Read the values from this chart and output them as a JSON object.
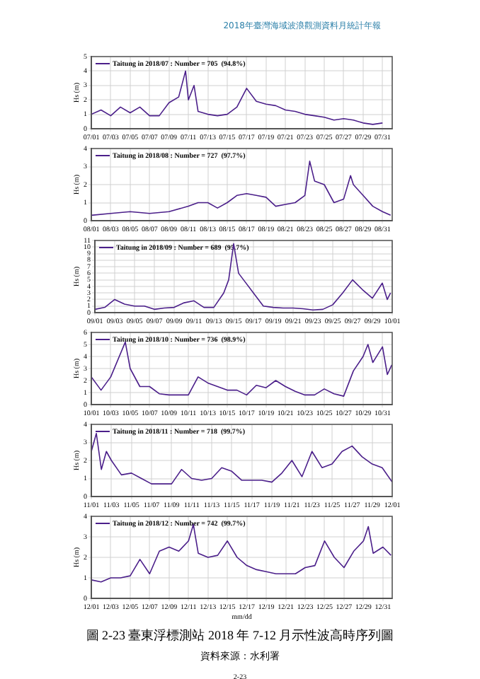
{
  "chart_data": [
    {
      "type": "line",
      "ylabel": "Hs (m)",
      "annotations": [
        "2018年臺灣海域波浪觀測資料月統計年報"
      ],
      "legend": "top left",
      "grid": true,
      "marker": "none",
      "line_style": "solid",
      "series": [
        {
          "name": "Taitung in 2018/07 : Number = 705  (94.8%)",
          "color": "#4b1f8a",
          "x": [
            "--07-01",
            "--07-02",
            "--07-03",
            "--07-04",
            "--07-05",
            "--07-06",
            "--07-07",
            "--07-08",
            "--07-09",
            "--07-10",
            "--07-10T17:00",
            "--07-11",
            "--07-11T14:00",
            "--07-12",
            "--07-13",
            "--07-14",
            "--07-15",
            "--07-16",
            "--07-17",
            "--07-18",
            "--07-19",
            "--07-20",
            "--07-21",
            "--07-22",
            "--07-23",
            "--07-24",
            "--07-25",
            "--07-26",
            "--07-27",
            "--07-28",
            "--07-29",
            "--07-30",
            "--07-31"
          ],
          "values": [
            1.0,
            1.3,
            0.9,
            1.5,
            1.1,
            1.5,
            0.9,
            0.9,
            1.8,
            2.2,
            4.0,
            2.0,
            3.0,
            1.2,
            1.0,
            0.9,
            1.0,
            1.5,
            2.8,
            1.9,
            1.7,
            1.6,
            1.3,
            1.2,
            1.0,
            0.9,
            0.8,
            0.6,
            0.7,
            0.6,
            0.4,
            0.3,
            0.4
          ]
        }
      ],
      "xlim": [
        "--07-01",
        "--08-01"
      ],
      "ylim": [
        0,
        5
      ],
      "yticks": [
        0,
        1,
        2,
        3,
        4,
        5
      ],
      "xticks": [
        {
          "value": "--07-01",
          "label": "07/01"
        },
        {
          "value": "--07-03",
          "label": "07/03"
        },
        {
          "value": "--07-05",
          "label": "07/05"
        },
        {
          "value": "--07-07",
          "label": "07/07"
        },
        {
          "value": "--07-09",
          "label": "07/09"
        },
        {
          "value": "--07-11",
          "label": "07/11"
        },
        {
          "value": "--07-13",
          "label": "07/13"
        },
        {
          "value": "--07-15",
          "label": "07/15"
        },
        {
          "value": "--07-17",
          "label": "07/17"
        },
        {
          "value": "--07-19",
          "label": "07/19"
        },
        {
          "value": "--07-21",
          "label": "07/21"
        },
        {
          "value": "--07-23",
          "label": "07/23"
        },
        {
          "value": "--07-25",
          "label": "07/25"
        },
        {
          "value": "--07-27",
          "label": "07/27"
        },
        {
          "value": "--07-29",
          "label": "07/29"
        },
        {
          "value": "--07-31",
          "label": "07/31"
        }
      ]
    },
    {
      "type": "line",
      "ylabel": "Hs (m)",
      "legend": "top left",
      "grid": true,
      "marker": "none",
      "line_style": "solid",
      "series": [
        {
          "name": "Taitung in 2018/08 : Number = 727  (97.7%)",
          "color": "#4b1f8a",
          "x": [
            "--08-01",
            "--08-03",
            "--08-05",
            "--08-07",
            "--08-09",
            "--08-11",
            "--08-12",
            "--08-13",
            "--08-14",
            "--08-15",
            "--08-16",
            "--08-17",
            "--08-18",
            "--08-19",
            "--08-20",
            "--08-21",
            "--08-22",
            "--08-23",
            "--08-23T12:00",
            "--08-24",
            "--08-25",
            "--08-26",
            "--08-27",
            "--08-27T17:00",
            "--08-28",
            "--08-29",
            "--08-30",
            "--08-31",
            "--08-31T20:00"
          ],
          "values": [
            0.3,
            0.4,
            0.5,
            0.4,
            0.5,
            0.8,
            1.0,
            1.0,
            0.7,
            1.0,
            1.4,
            1.5,
            1.4,
            1.3,
            0.8,
            0.9,
            1.0,
            1.4,
            3.3,
            2.2,
            2.0,
            1.0,
            1.2,
            2.5,
            2.0,
            1.4,
            0.8,
            0.5,
            0.3
          ]
        }
      ],
      "xlim": [
        "--08-01",
        "--09-01"
      ],
      "ylim": [
        0,
        4
      ],
      "yticks": [
        0,
        1,
        2,
        3,
        4
      ],
      "xticks": [
        {
          "value": "--08-01",
          "label": "08/01"
        },
        {
          "value": "--08-03",
          "label": "08/03"
        },
        {
          "value": "--08-05",
          "label": "08/05"
        },
        {
          "value": "--08-07",
          "label": "08/07"
        },
        {
          "value": "--08-09",
          "label": "08/09"
        },
        {
          "value": "--08-11",
          "label": "08/11"
        },
        {
          "value": "--08-13",
          "label": "08/13"
        },
        {
          "value": "--08-15",
          "label": "08/15"
        },
        {
          "value": "--08-17",
          "label": "08/17"
        },
        {
          "value": "--08-19",
          "label": "08/19"
        },
        {
          "value": "--08-21",
          "label": "08/21"
        },
        {
          "value": "--08-23",
          "label": "08/23"
        },
        {
          "value": "--08-25",
          "label": "08/25"
        },
        {
          "value": "--08-27",
          "label": "08/27"
        },
        {
          "value": "--08-29",
          "label": "08/29"
        },
        {
          "value": "--08-31",
          "label": "08/31"
        }
      ]
    },
    {
      "type": "line",
      "ylabel": "Hs (m)",
      "legend": "top left",
      "grid": true,
      "marker": "none",
      "line_style": "solid",
      "series": [
        {
          "name": "Taitung in 2018/09 : Number = 689  (95.7%)",
          "color": "#4b1f8a",
          "x": [
            "--09-01",
            "--09-02",
            "--09-03",
            "--09-04",
            "--09-05",
            "--09-06",
            "--09-07",
            "--09-08",
            "--09-09",
            "--09-10",
            "--09-11",
            "--09-12",
            "--09-13",
            "--09-14",
            "--09-14T12:00",
            "--09-15",
            "--09-15T12:00",
            "--09-16",
            "--09-17",
            "--09-18",
            "--09-19",
            "--09-20",
            "--09-21",
            "--09-22",
            "--09-23",
            "--09-24",
            "--09-25",
            "--09-26",
            "--09-27",
            "--09-28",
            "--09-29",
            "--09-30",
            "--09-30T12:00",
            "--09-30T20:00"
          ],
          "values": [
            0.5,
            0.8,
            2.0,
            1.3,
            1.0,
            1.0,
            0.5,
            0.7,
            0.8,
            1.5,
            1.8,
            0.8,
            0.8,
            3.0,
            5.0,
            10.5,
            6.0,
            5.0,
            3.0,
            1.0,
            0.8,
            0.7,
            0.7,
            0.6,
            0.4,
            0.5,
            1.2,
            3.0,
            5.0,
            3.5,
            2.2,
            4.5,
            2.0,
            3.0
          ]
        }
      ],
      "xlim": [
        "--09-01",
        "--10-01"
      ],
      "ylim": [
        0,
        11
      ],
      "yticks": [
        0,
        1,
        2,
        3,
        4,
        5,
        6,
        7,
        8,
        9,
        10,
        11
      ],
      "xticks": [
        {
          "value": "--09-01",
          "label": "09/01"
        },
        {
          "value": "--09-03",
          "label": "09/03"
        },
        {
          "value": "--09-05",
          "label": "09/05"
        },
        {
          "value": "--09-07",
          "label": "09/07"
        },
        {
          "value": "--09-09",
          "label": "09/09"
        },
        {
          "value": "--09-11",
          "label": "09/11"
        },
        {
          "value": "--09-13",
          "label": "09/13"
        },
        {
          "value": "--09-15",
          "label": "09/15"
        },
        {
          "value": "--09-17",
          "label": "09/17"
        },
        {
          "value": "--09-19",
          "label": "09/19"
        },
        {
          "value": "--09-21",
          "label": "09/21"
        },
        {
          "value": "--09-23",
          "label": "09/23"
        },
        {
          "value": "--09-25",
          "label": "09/25"
        },
        {
          "value": "--09-27",
          "label": "09/27"
        },
        {
          "value": "--09-29",
          "label": "09/29"
        },
        {
          "value": "--10-01",
          "label": "10/01"
        }
      ]
    },
    {
      "type": "line",
      "ylabel": "Hs (m)",
      "legend": "top left",
      "grid": true,
      "marker": "none",
      "line_style": "solid",
      "series": [
        {
          "name": "Taitung in 2018/10 : Number = 736  (98.9%)",
          "color": "#4b1f8a",
          "x": [
            "--10-01",
            "--10-02",
            "--10-03",
            "--10-04T12:00",
            "--10-05",
            "--10-06",
            "--10-07",
            "--10-08",
            "--10-09",
            "--10-10",
            "--10-11",
            "--10-12",
            "--10-13",
            "--10-14",
            "--10-15",
            "--10-16",
            "--10-17",
            "--10-18",
            "--10-19",
            "--10-20",
            "--10-21",
            "--10-22",
            "--10-23",
            "--10-24",
            "--10-25",
            "--10-26",
            "--10-27",
            "--10-28",
            "--10-29",
            "--10-29T12:00",
            "--10-30",
            "--10-31",
            "--10-31T12:00",
            "--10-31T23:00"
          ],
          "values": [
            2.3,
            1.2,
            2.3,
            5.2,
            3.0,
            1.5,
            1.5,
            0.9,
            0.8,
            0.8,
            0.8,
            2.3,
            1.8,
            1.5,
            1.2,
            1.2,
            0.8,
            1.6,
            1.4,
            2.0,
            1.5,
            1.1,
            0.8,
            0.8,
            1.3,
            0.9,
            0.7,
            2.8,
            4.0,
            5.0,
            3.5,
            4.8,
            2.5,
            3.3
          ]
        }
      ],
      "xlim": [
        "--10-01",
        "--11-01"
      ],
      "ylim": [
        0,
        6
      ],
      "yticks": [
        0,
        1,
        2,
        3,
        4,
        5,
        6
      ],
      "xticks": [
        {
          "value": "--10-01",
          "label": "10/01"
        },
        {
          "value": "--10-03",
          "label": "10/03"
        },
        {
          "value": "--10-05",
          "label": "10/05"
        },
        {
          "value": "--10-07",
          "label": "10/07"
        },
        {
          "value": "--10-09",
          "label": "10/09"
        },
        {
          "value": "--10-11",
          "label": "10/11"
        },
        {
          "value": "--10-13",
          "label": "10/13"
        },
        {
          "value": "--10-15",
          "label": "10/15"
        },
        {
          "value": "--10-17",
          "label": "10/17"
        },
        {
          "value": "--10-19",
          "label": "10/19"
        },
        {
          "value": "--10-21",
          "label": "10/21"
        },
        {
          "value": "--10-23",
          "label": "10/23"
        },
        {
          "value": "--10-25",
          "label": "10/25"
        },
        {
          "value": "--10-27",
          "label": "10/27"
        },
        {
          "value": "--10-29",
          "label": "10/29"
        },
        {
          "value": "--10-31",
          "label": "10/31"
        }
      ]
    },
    {
      "type": "line",
      "ylabel": "Hs (m)",
      "legend": "top left",
      "grid": true,
      "marker": "none",
      "line_style": "solid",
      "series": [
        {
          "name": "Taitung in 2018/11 : Number = 718  (99.7%)",
          "color": "#4b1f8a",
          "x": [
            "--11-01",
            "--11-01T12:00",
            "--11-02",
            "--11-02T12:00",
            "--11-03",
            "--11-04",
            "--11-05",
            "--11-06",
            "--11-07",
            "--11-08",
            "--11-09",
            "--11-10",
            "--11-11",
            "--11-12",
            "--11-13",
            "--11-14",
            "--11-15",
            "--11-16",
            "--11-17",
            "--11-18",
            "--11-19",
            "--11-20",
            "--11-21",
            "--11-22",
            "--11-23",
            "--11-24",
            "--11-25",
            "--11-26",
            "--11-27",
            "--11-28",
            "--11-29",
            "--11-30",
            "--12-01"
          ],
          "values": [
            2.5,
            3.5,
            1.5,
            2.5,
            2.0,
            1.2,
            1.3,
            1.0,
            0.7,
            0.7,
            0.7,
            1.5,
            1.0,
            0.9,
            1.0,
            1.6,
            1.4,
            0.9,
            0.9,
            0.9,
            0.8,
            1.3,
            2.0,
            1.1,
            2.5,
            1.6,
            1.8,
            2.5,
            2.8,
            2.2,
            1.8,
            1.6,
            0.8
          ]
        }
      ],
      "xlim": [
        "--11-01",
        "--12-01"
      ],
      "ylim": [
        0,
        4
      ],
      "yticks": [
        0,
        1,
        2,
        3,
        4
      ],
      "xticks": [
        {
          "value": "--11-01",
          "label": "11/01"
        },
        {
          "value": "--11-03",
          "label": "11/03"
        },
        {
          "value": "--11-05",
          "label": "11/05"
        },
        {
          "value": "--11-07",
          "label": "11/07"
        },
        {
          "value": "--11-09",
          "label": "11/09"
        },
        {
          "value": "--11-11",
          "label": "11/11"
        },
        {
          "value": "--11-13",
          "label": "11/13"
        },
        {
          "value": "--11-15",
          "label": "11/15"
        },
        {
          "value": "--11-17",
          "label": "11/17"
        },
        {
          "value": "--11-19",
          "label": "11/19"
        },
        {
          "value": "--11-21",
          "label": "11/21"
        },
        {
          "value": "--11-23",
          "label": "11/23"
        },
        {
          "value": "--11-25",
          "label": "11/25"
        },
        {
          "value": "--11-27",
          "label": "11/27"
        },
        {
          "value": "--11-29",
          "label": "11/29"
        },
        {
          "value": "--12-01",
          "label": "12/01"
        }
      ]
    },
    {
      "type": "line",
      "ylabel": "Hs (m)",
      "xlabel": "mm/dd",
      "annotations": [
        "圖 2-23 臺東浮標測站 2018 年 7-12 月示性波高時序列圖",
        "資料來源：水利署",
        "2-23"
      ],
      "legend": "top left",
      "grid": true,
      "marker": "none",
      "line_style": "solid",
      "series": [
        {
          "name": "Taitung in 2018/12 : Number = 742  (99.7%)",
          "color": "#4b1f8a",
          "x": [
            "--12-01",
            "--12-02",
            "--12-03",
            "--12-04",
            "--12-05",
            "--12-06",
            "--12-07",
            "--12-08",
            "--12-09",
            "--12-10",
            "--12-11",
            "--12-11T12:00",
            "--12-12",
            "--12-13",
            "--12-14",
            "--12-15",
            "--12-16",
            "--12-17",
            "--12-18",
            "--12-19",
            "--12-20",
            "--12-21",
            "--12-22",
            "--12-23",
            "--12-24",
            "--12-25",
            "--12-26",
            "--12-27",
            "--12-28",
            "--12-29",
            "--12-29T12:00",
            "--12-30",
            "--12-31",
            "--12-31T20:00"
          ],
          "values": [
            0.9,
            0.8,
            1.0,
            1.0,
            1.1,
            1.9,
            1.2,
            2.3,
            2.5,
            2.3,
            2.8,
            3.6,
            2.2,
            2.0,
            2.1,
            2.8,
            2.0,
            1.6,
            1.4,
            1.3,
            1.2,
            1.2,
            1.2,
            1.5,
            1.6,
            2.8,
            2.0,
            1.5,
            2.3,
            2.8,
            3.5,
            2.2,
            2.5,
            2.1
          ]
        }
      ],
      "xlim": [
        "--12-01",
        "--12-31T23:00"
      ],
      "ylim": [
        0,
        4
      ],
      "yticks": [
        0,
        1,
        2,
        3,
        4
      ],
      "xticks": [
        {
          "value": "--12-01",
          "label": "12/01"
        },
        {
          "value": "--12-03",
          "label": "12/03"
        },
        {
          "value": "--12-05",
          "label": "12/05"
        },
        {
          "value": "--12-07",
          "label": "12/07"
        },
        {
          "value": "--12-09",
          "label": "12/09"
        },
        {
          "value": "--12-11",
          "label": "12/11"
        },
        {
          "value": "--12-13",
          "label": "12/13"
        },
        {
          "value": "--12-15",
          "label": "12/15"
        },
        {
          "value": "--12-17",
          "label": "12/17"
        },
        {
          "value": "--12-19",
          "label": "12/19"
        },
        {
          "value": "--12-21",
          "label": "12/21"
        },
        {
          "value": "--12-23",
          "label": "12/23"
        },
        {
          "value": "--12-25",
          "label": "12/25"
        },
        {
          "value": "--12-27",
          "label": "12/27"
        },
        {
          "value": "--12-29",
          "label": "12/29"
        },
        {
          "value": "--12-31",
          "label": "12/31"
        }
      ]
    }
  ]
}
